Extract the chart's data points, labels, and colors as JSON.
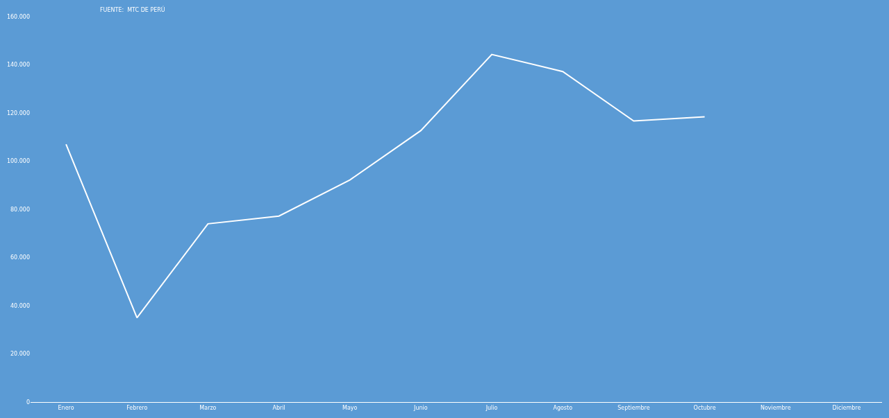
{
  "chart_data": {
    "type": "line",
    "annotations": [
      "FUENTE:  MTC DE PERÚ"
    ],
    "categories": [
      "Enero",
      "Febrero",
      "Marzo",
      "Abril",
      "Mayo",
      "Junio",
      "Julio",
      "Agosto",
      "Septiembre",
      "Octubre",
      "Noviembre",
      "Diciembre"
    ],
    "values": [
      107000,
      35000,
      74000,
      77200,
      92200,
      112700,
      144300,
      137200,
      116700,
      118400,
      null,
      null
    ],
    "color": "#ffffff",
    "ylim": [
      0,
      160000
    ],
    "yticks": [
      0,
      {
        "value": 20000,
        "label": "20.000"
      },
      {
        "value": 40000,
        "label": "40.000"
      },
      {
        "value": 60000,
        "label": "60.000"
      },
      {
        "value": 80000,
        "label": "80.000"
      },
      {
        "value": 100000,
        "label": "100.000"
      },
      {
        "value": 120000,
        "label": "120.000"
      },
      {
        "value": 140000,
        "label": "140.000"
      },
      {
        "value": 160000,
        "label": "160.000"
      }
    ],
    "grid": false,
    "marker": "none",
    "line_style": "solid"
  }
}
